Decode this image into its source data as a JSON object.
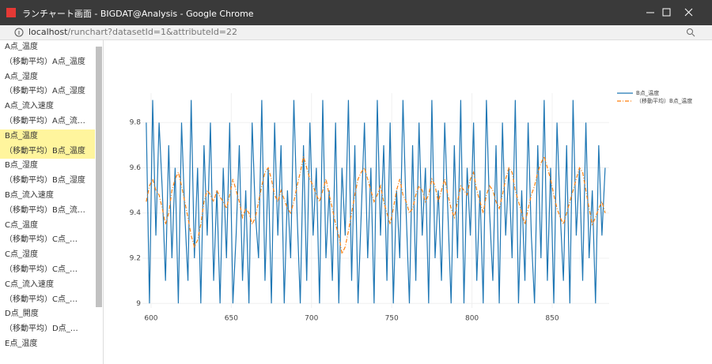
{
  "window": {
    "title": "ランチャート画面 - BIGDAT@Analysis - Google Chrome",
    "url_host": "localhost",
    "url_path": "/runchart?datasetId=1&attributeId=22"
  },
  "sidebar": {
    "items": [
      "A点_温度",
      "（移動平均）A点_温度",
      "A点_湿度",
      "（移動平均）A点_湿度",
      "A点_流入速度",
      "（移動平均）A点_流…",
      "B点_温度",
      "（移動平均）B点_温度",
      "B点_湿度",
      "（移動平均）B点_湿度",
      "B点_流入速度",
      "（移動平均）B点_流…",
      "C点_温度",
      "（移動平均）C点_…",
      "C点_湿度",
      "（移動平均）C点_…",
      "C点_流入速度",
      "（移動平均）C点_…",
      "D点_開度",
      "（移動平均）D点_…",
      "E点_温度"
    ],
    "selected": [
      6,
      7
    ]
  },
  "chart_data": {
    "type": "line",
    "x": [
      597,
      599,
      601,
      603,
      605,
      607,
      609,
      611,
      613,
      615,
      617,
      619,
      621,
      623,
      625,
      627,
      629,
      631,
      633,
      635,
      637,
      639,
      641,
      643,
      645,
      647,
      649,
      651,
      653,
      655,
      657,
      659,
      661,
      663,
      665,
      667,
      669,
      671,
      673,
      675,
      677,
      679,
      681,
      683,
      685,
      687,
      689,
      691,
      693,
      695,
      697,
      699,
      701,
      703,
      705,
      707,
      709,
      711,
      713,
      715,
      717,
      719,
      721,
      723,
      725,
      727,
      729,
      731,
      733,
      735,
      737,
      739,
      741,
      743,
      745,
      747,
      749,
      751,
      753,
      755,
      757,
      759,
      761,
      763,
      765,
      767,
      769,
      771,
      773,
      775,
      777,
      779,
      781,
      783,
      785,
      787,
      789,
      791,
      793,
      795,
      797,
      799,
      801,
      803,
      805,
      807,
      809,
      811,
      813,
      815,
      817,
      819,
      821,
      823,
      825,
      827,
      829,
      831,
      833,
      835,
      837,
      839,
      841,
      843,
      845,
      847,
      849,
      851,
      853,
      855,
      857,
      859,
      861,
      863,
      865,
      867,
      869,
      871,
      873,
      875,
      877,
      879,
      881,
      883
    ],
    "series": [
      {
        "name": "B点_温度",
        "color": "#1f77b4",
        "dash": "solid",
        "values": [
          9.8,
          9.0,
          9.9,
          9.3,
          9.8,
          9.5,
          9.1,
          9.7,
          9.2,
          9.6,
          9.0,
          9.8,
          9.4,
          9.1,
          9.9,
          9.2,
          9.6,
          9.0,
          9.7,
          9.3,
          9.8,
          9.1,
          9.5,
          9.0,
          9.6,
          9.2,
          9.8,
          9.0,
          9.3,
          9.7,
          9.1,
          9.5,
          9.0,
          9.8,
          9.4,
          9.2,
          9.9,
          9.1,
          9.6,
          9.0,
          9.8,
          9.3,
          9.7,
          9.0,
          9.5,
          9.2,
          9.9,
          9.4,
          9.0,
          9.7,
          9.1,
          9.8,
          9.3,
          9.6,
          9.0,
          9.9,
          9.2,
          9.5,
          9.1,
          9.8,
          9.0,
          9.6,
          9.3,
          9.9,
          9.1,
          9.7,
          9.0,
          9.4,
          9.8,
          9.2,
          9.6,
          9.0,
          9.9,
          9.3,
          9.7,
          9.1,
          9.8,
          9.0,
          9.5,
          9.2,
          9.9,
          9.4,
          9.0,
          9.7,
          9.1,
          9.8,
          9.3,
          9.6,
          9.0,
          9.9,
          9.2,
          9.5,
          9.1,
          9.8,
          9.4,
          9.0,
          9.7,
          9.2,
          9.9,
          9.0,
          9.6,
          9.3,
          9.8,
          9.1,
          9.5,
          9.0,
          9.9,
          9.4,
          9.1,
          9.7,
          9.0,
          9.8,
          9.3,
          9.6,
          9.2,
          9.9,
          9.0,
          9.5,
          9.1,
          9.8,
          9.3,
          9.0,
          9.7,
          9.2,
          9.9,
          9.1,
          9.6,
          9.0,
          9.8,
          9.4,
          9.1,
          9.7,
          9.0,
          9.9,
          9.3,
          9.6,
          9.1,
          9.8,
          9.2,
          9.5,
          9.0,
          9.7,
          9.3,
          9.6
        ]
      },
      {
        "name": "（移動平均）B点_温度",
        "color": "#ff7f0e",
        "dash": "dashdot",
        "values": [
          9.45,
          9.52,
          9.55,
          9.5,
          9.48,
          9.42,
          9.35,
          9.4,
          9.5,
          9.55,
          9.58,
          9.52,
          9.45,
          9.38,
          9.3,
          9.25,
          9.28,
          9.35,
          9.45,
          9.5,
          9.48,
          9.45,
          9.5,
          9.47,
          9.45,
          9.42,
          9.48,
          9.55,
          9.5,
          9.45,
          9.38,
          9.42,
          9.4,
          9.35,
          9.38,
          9.45,
          9.52,
          9.58,
          9.6,
          9.55,
          9.48,
          9.45,
          9.5,
          9.46,
          9.42,
          9.4,
          9.45,
          9.52,
          9.58,
          9.65,
          9.6,
          9.55,
          9.52,
          9.48,
          9.45,
          9.5,
          9.55,
          9.48,
          9.42,
          9.35,
          9.3,
          9.22,
          9.25,
          9.32,
          9.4,
          9.48,
          9.55,
          9.58,
          9.6,
          9.55,
          9.5,
          9.45,
          9.48,
          9.52,
          9.45,
          9.4,
          9.35,
          9.42,
          9.5,
          9.55,
          9.48,
          9.45,
          9.4,
          9.42,
          9.48,
          9.52,
          9.5,
          9.45,
          9.48,
          9.55,
          9.52,
          9.45,
          9.5,
          9.55,
          9.48,
          9.42,
          9.38,
          9.45,
          9.52,
          9.5,
          9.48,
          9.55,
          9.58,
          9.5,
          9.45,
          9.4,
          9.48,
          9.52,
          9.5,
          9.45,
          9.42,
          9.48,
          9.55,
          9.6,
          9.58,
          9.5,
          9.45,
          9.4,
          9.35,
          9.42,
          9.48,
          9.52,
          9.58,
          9.62,
          9.65,
          9.6,
          9.55,
          9.48,
          9.42,
          9.38,
          9.35,
          9.4,
          9.45,
          9.5,
          9.55,
          9.6,
          9.58,
          9.5,
          9.42,
          9.35,
          9.38,
          9.42,
          9.45,
          9.4
        ]
      }
    ],
    "xlim": [
      594.6,
      885.5
    ],
    "xticks": [
      600,
      650,
      700,
      750,
      800,
      850
    ],
    "ylim": [
      8.98,
      9.93
    ],
    "yticks": [
      9,
      9.2,
      9.4,
      9.6,
      9.8
    ],
    "grid": true,
    "legend": "top-right"
  }
}
